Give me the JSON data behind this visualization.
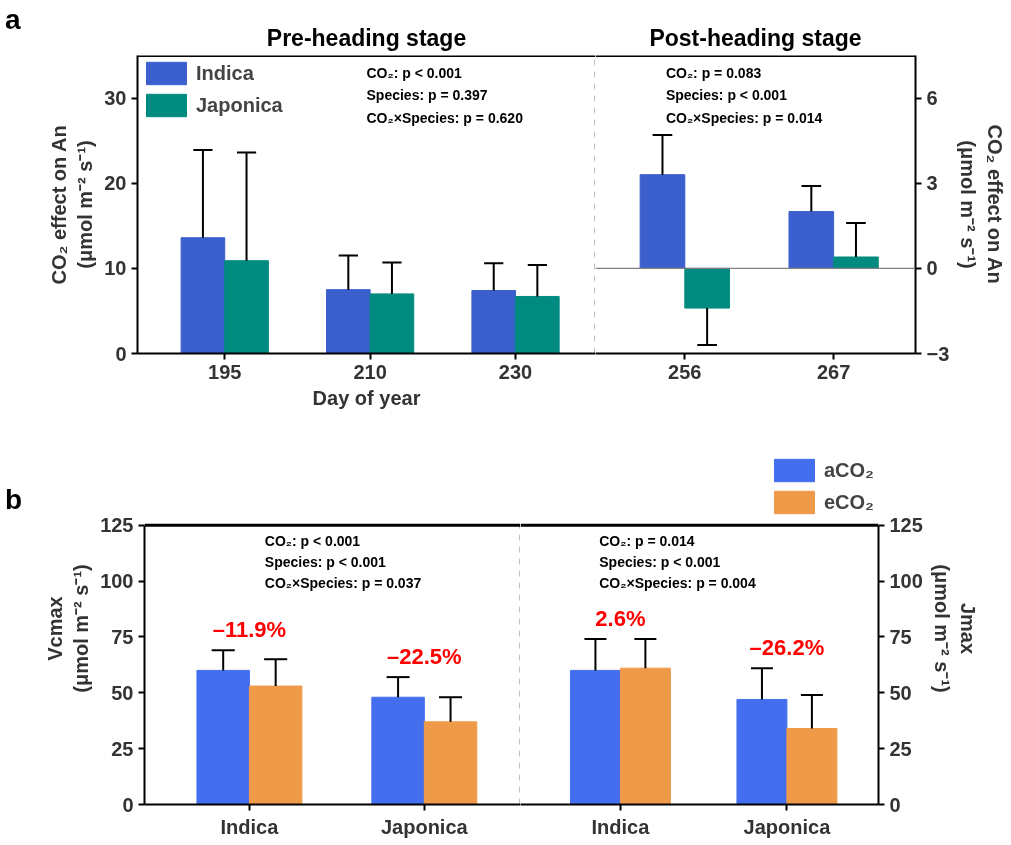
{
  "chart_data": [
    {
      "type": "bar",
      "title": "Pre-heading stage",
      "xlabel": "Day of year",
      "ylabel": "CO₂ effect on An\n(μmol m⁻² s⁻¹)",
      "categories": [
        "195",
        "210",
        "230"
      ],
      "series": [
        {
          "name": "Indica",
          "color": "#3b5fcd",
          "values": [
            13.6,
            7.5,
            7.4
          ],
          "errors": [
            10.3,
            4.0,
            3.2
          ]
        },
        {
          "name": "Japonica",
          "color": "#008b80",
          "values": [
            10.9,
            7.0,
            6.7
          ],
          "errors": [
            12.7,
            3.7,
            3.7
          ]
        }
      ],
      "ylim": [
        0,
        35
      ],
      "yticks": [
        0,
        10,
        20,
        30
      ],
      "legend": "top left",
      "annotations": [
        "a",
        "CO₂: p < 0.001",
        "Species: p = 0.397",
        "CO₂×Species: p = 0.620"
      ]
    },
    {
      "type": "bar",
      "title": "Post-heading stage",
      "y2label": "CO₂ effect on An\n(μmol m⁻² s⁻¹)",
      "categories": [
        "256",
        "267"
      ],
      "series": [
        {
          "color": "#3b5fcd",
          "axis": "y2",
          "values": [
            3.3,
            2.0
          ],
          "errors": [
            1.4,
            0.9
          ]
        },
        {
          "color": "#008b80",
          "axis": "y2",
          "values": [
            -1.4,
            0.4
          ],
          "errors": [
            1.3,
            1.2
          ]
        }
      ],
      "y2lim": [
        -3,
        7.5
      ],
      "y2ticks": [
        -3,
        0,
        3,
        6
      ],
      "ref_lines": [
        {
          "axis": "y2",
          "value": 0,
          "color": "#808080"
        }
      ],
      "annotations": [
        "CO₂: p = 0.083",
        "Species: p < 0.001",
        "CO₂×Species: p = 0.014"
      ]
    },
    {
      "type": "bar",
      "ylabel": "Vcmax\n(μmol m⁻² s⁻¹)",
      "categories": [
        "Indica",
        "Japonica"
      ],
      "series": [
        {
          "color": "#436eee",
          "values": [
            60,
            48
          ],
          "errors": [
            9,
            9
          ]
        },
        {
          "color": "#ee9a49",
          "values": [
            53,
            37
          ],
          "errors": [
            12,
            11
          ]
        }
      ],
      "ylim": [
        0,
        125
      ],
      "yticks": [
        0,
        25,
        50,
        75,
        100,
        125
      ],
      "annotations": [
        "b",
        "CO₂: p < 0.001",
        "Species: p < 0.001",
        "CO₂×Species: p = 0.037",
        "–11.9%",
        "–22.5%"
      ]
    },
    {
      "type": "bar",
      "y2label": "Jmax\n(μmol m⁻² s⁻¹)",
      "categories": [
        "Indica",
        "Japonica"
      ],
      "series": [
        {
          "name": "aCO₂",
          "color": "#436eee",
          "axis": "y2",
          "values": [
            60,
            47
          ],
          "errors": [
            14,
            14
          ]
        },
        {
          "name": "eCO₂",
          "color": "#ee9a49",
          "axis": "y2",
          "values": [
            61,
            34
          ],
          "errors": [
            13,
            15
          ]
        }
      ],
      "y2lim": [
        0,
        125
      ],
      "y2ticks": [
        0,
        25,
        50,
        75,
        100,
        125
      ],
      "legend": "top right",
      "annotations": [
        "CO₂: p = 0.014",
        "Species: p < 0.001",
        "CO₂×Species: p = 0.004",
        "2.6%",
        "–26.2%"
      ]
    }
  ]
}
